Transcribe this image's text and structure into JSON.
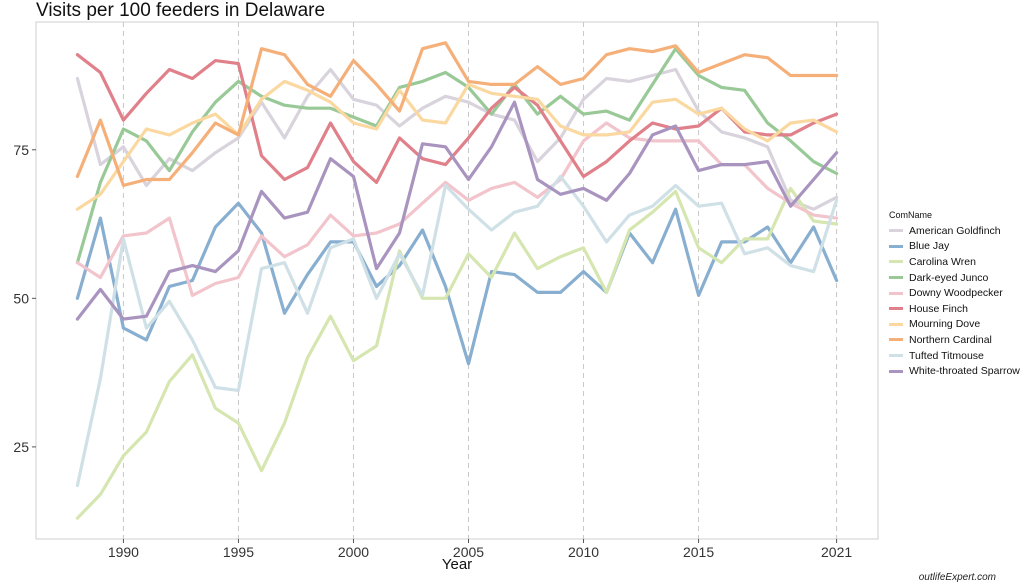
{
  "chart_data": {
    "type": "line",
    "title": "Visits per 100 feeders in Delaware",
    "xlabel": "Year",
    "ylabel": "",
    "xlim": [
      1986.2,
      2022.8
    ],
    "ylim": [
      9.5,
      96.5
    ],
    "xticks": [
      "1990",
      "1995",
      "2000",
      "2005",
      "2010",
      "2015",
      "2021"
    ],
    "yticks": [
      "25",
      "50",
      "75"
    ],
    "grid": "vertical dashed at x ticks",
    "legend_position": "right",
    "legend_title": "ComName",
    "x": [
      1988,
      1989,
      1990,
      1991,
      1992,
      1993,
      1994,
      1995,
      1996,
      1997,
      1998,
      1999,
      2000,
      2001,
      2002,
      2003,
      2004,
      2005,
      2006,
      2007,
      2008,
      2009,
      2010,
      2011,
      2012,
      2013,
      2014,
      2015,
      2016,
      2017,
      2018,
      2019,
      2020,
      2021
    ],
    "series": [
      {
        "name": "American Goldfinch",
        "color": "#d8d3dc",
        "values": [
          87,
          72.5,
          75.5,
          69,
          73.5,
          71.5,
          74.5,
          77,
          83,
          77,
          84,
          88.5,
          83.5,
          82.5,
          79,
          82,
          84,
          83,
          81,
          80,
          73,
          77,
          83.5,
          87,
          86.5,
          87.5,
          88.5,
          81.5,
          78,
          77,
          75.5,
          66.5,
          65,
          67
        ]
      },
      {
        "name": "Blue Jay",
        "color": "#88aed0",
        "values": [
          50,
          63.5,
          45,
          43,
          52,
          53,
          62,
          66,
          61,
          47.5,
          54,
          59.5,
          59.5,
          52,
          55.5,
          61.5,
          52,
          39,
          54.5,
          54,
          51,
          51,
          54.5,
          51,
          61,
          56,
          65,
          50.5,
          59.5,
          59.5,
          62,
          56,
          62,
          53
        ]
      },
      {
        "name": "Carolina Wren",
        "color": "#d6e6b0",
        "values": [
          13,
          17,
          23.5,
          27.5,
          36,
          40.5,
          31.5,
          29,
          21,
          29,
          40,
          47,
          39.5,
          42,
          58,
          50,
          50,
          57.5,
          53.5,
          61,
          55,
          57,
          58.5,
          51,
          61.5,
          64.5,
          68,
          58.5,
          56,
          60,
          60,
          68.5,
          63,
          62.5
        ]
      },
      {
        "name": "Dark-eyed Junco",
        "color": "#98c996",
        "values": [
          56,
          69.5,
          78.5,
          76.5,
          71.5,
          78,
          83,
          86.5,
          84,
          82.5,
          82,
          82,
          80.5,
          79,
          85.5,
          86.5,
          88,
          85.5,
          81,
          86,
          81,
          84,
          81,
          81.5,
          80,
          86,
          92,
          87.5,
          85.5,
          85,
          79.5,
          76.5,
          73,
          71
        ]
      },
      {
        "name": "Downy Woodpecker",
        "color": "#f2c4cc",
        "values": [
          56,
          53.5,
          60.5,
          61,
          63.5,
          50.5,
          52.5,
          53.5,
          60.5,
          57,
          59,
          64,
          60.5,
          61,
          62.5,
          66,
          69.5,
          66.5,
          68.5,
          69.5,
          67,
          70,
          76.5,
          79.5,
          77,
          76.5,
          76.5,
          76.5,
          72.5,
          72.5,
          68.5,
          66,
          64,
          63.5
        ]
      },
      {
        "name": "House Finch",
        "color": "#e0808a",
        "values": [
          91,
          88,
          80,
          84.5,
          88.5,
          87,
          90,
          89.5,
          74,
          70,
          72,
          79.5,
          73,
          69.5,
          77,
          73.5,
          72.5,
          77,
          82,
          85.5,
          82.5,
          76.5,
          70.5,
          73,
          76.5,
          79.5,
          78.5,
          79,
          82,
          78,
          77.5,
          77.5,
          79.5,
          81
        ]
      },
      {
        "name": "Mourning Dove",
        "color": "#fad8a0",
        "values": [
          65,
          67.5,
          73,
          78.5,
          77.5,
          79.5,
          81,
          77.5,
          83.5,
          86.5,
          85,
          83,
          79.5,
          78.5,
          85,
          80,
          79.5,
          86,
          84.5,
          84,
          83.5,
          79,
          77.5,
          77.5,
          78,
          83,
          83.5,
          81,
          82,
          78.5,
          76.5,
          79.5,
          80,
          78
        ]
      },
      {
        "name": "Northern Cardinal",
        "color": "#f5b07a",
        "values": [
          70.5,
          80,
          69,
          70,
          70,
          74.5,
          79.5,
          77.5,
          92,
          91,
          86,
          84,
          90,
          86,
          81.5,
          92,
          93,
          86.5,
          86,
          86,
          89,
          86,
          87,
          91,
          92,
          91.5,
          92.5,
          88,
          89.5,
          91,
          90.5,
          87.5,
          87.5,
          87.5
        ]
      },
      {
        "name": "Tufted Titmouse",
        "color": "#cfe0e6",
        "values": [
          18.5,
          36.5,
          60,
          45,
          49.5,
          43,
          35,
          34.5,
          55,
          56,
          47.5,
          58.5,
          60,
          50,
          57.5,
          50.5,
          69,
          65,
          61.5,
          64.5,
          65.5,
          70.5,
          65.5,
          59.5,
          64,
          65.5,
          69,
          65.5,
          66,
          57.5,
          58.5,
          55.5,
          54.5,
          66.5
        ]
      },
      {
        "name": "White-throated Sparrow",
        "color": "#a994bf",
        "values": [
          46.5,
          51.5,
          46.5,
          47,
          54.5,
          55.5,
          54.5,
          58,
          68,
          63.5,
          64.5,
          73.5,
          70.5,
          55,
          61,
          76,
          75.5,
          70,
          75.5,
          83,
          70,
          67.5,
          68.5,
          66.5,
          71,
          77.5,
          79,
          71.5,
          72.5,
          72.5,
          73,
          65.5,
          70,
          74.5
        ]
      }
    ]
  },
  "watermark": "outlifeExpert.com"
}
